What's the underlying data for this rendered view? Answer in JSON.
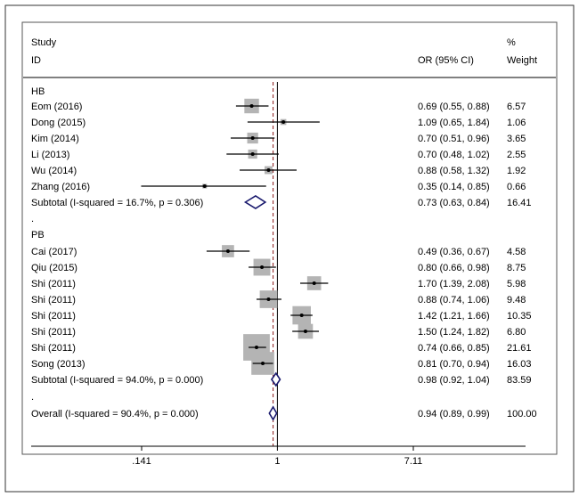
{
  "chart_data": {
    "type": "forest",
    "header": {
      "study_col_line1": "Study",
      "study_col_line2": "ID",
      "or_col": "OR (95% CI)",
      "weight_col_line1": "%",
      "weight_col_line2": "Weight"
    },
    "groups": [
      {
        "label": "HB",
        "studies": [
          {
            "study": "Eom (2016)",
            "or": 0.69,
            "lo": 0.55,
            "hi": 0.88,
            "ci_text": "0.69 (0.55, 0.88)",
            "weight": "6.57"
          },
          {
            "study": "Dong (2015)",
            "or": 1.09,
            "lo": 0.65,
            "hi": 1.84,
            "ci_text": "1.09 (0.65, 1.84)",
            "weight": "1.06"
          },
          {
            "study": "Kim (2014)",
            "or": 0.7,
            "lo": 0.51,
            "hi": 0.96,
            "ci_text": "0.70 (0.51, 0.96)",
            "weight": "3.65"
          },
          {
            "study": "Li (2013)",
            "or": 0.7,
            "lo": 0.48,
            "hi": 1.02,
            "ci_text": "0.70 (0.48, 1.02)",
            "weight": "2.55"
          },
          {
            "study": "Wu (2014)",
            "or": 0.88,
            "lo": 0.58,
            "hi": 1.32,
            "ci_text": "0.88 (0.58, 1.32)",
            "weight": "1.92"
          },
          {
            "study": "Zhang (2016)",
            "or": 0.35,
            "lo": 0.14,
            "hi": 0.85,
            "ci_text": "0.35 (0.14, 0.85)",
            "weight": "0.66"
          }
        ],
        "subtotal": {
          "label": "Subtotal  (I-squared = 16.7%, p = 0.306)",
          "or": 0.73,
          "lo": 0.63,
          "hi": 0.84,
          "ci_text": "0.73 (0.63, 0.84)",
          "weight": "16.41"
        }
      },
      {
        "label": "PB",
        "studies": [
          {
            "study": "Cai (2017)",
            "or": 0.49,
            "lo": 0.36,
            "hi": 0.67,
            "ci_text": "0.49 (0.36, 0.67)",
            "weight": "4.58"
          },
          {
            "study": "Qiu (2015)",
            "or": 0.8,
            "lo": 0.66,
            "hi": 0.98,
            "ci_text": "0.80 (0.66, 0.98)",
            "weight": "8.75"
          },
          {
            "study": "Shi (2011)",
            "or": 1.7,
            "lo": 1.39,
            "hi": 2.08,
            "ci_text": "1.70 (1.39, 2.08)",
            "weight": "5.98"
          },
          {
            "study": "Shi (2011)",
            "or": 0.88,
            "lo": 0.74,
            "hi": 1.06,
            "ci_text": "0.88 (0.74, 1.06)",
            "weight": "9.48"
          },
          {
            "study": "Shi (2011)",
            "or": 1.42,
            "lo": 1.21,
            "hi": 1.66,
            "ci_text": "1.42 (1.21, 1.66)",
            "weight": "10.35"
          },
          {
            "study": "Shi (2011)",
            "or": 1.5,
            "lo": 1.24,
            "hi": 1.82,
            "ci_text": "1.50 (1.24, 1.82)",
            "weight": "6.80"
          },
          {
            "study": "Shi (2011)",
            "or": 0.74,
            "lo": 0.66,
            "hi": 0.85,
            "ci_text": "0.74 (0.66, 0.85)",
            "weight": "21.61"
          },
          {
            "study": "Song (2013)",
            "or": 0.81,
            "lo": 0.7,
            "hi": 0.94,
            "ci_text": "0.81 (0.70, 0.94)",
            "weight": "16.03"
          }
        ],
        "subtotal": {
          "label": "Subtotal  (I-squared = 94.0%, p = 0.000)",
          "or": 0.98,
          "lo": 0.92,
          "hi": 1.04,
          "ci_text": "0.98 (0.92, 1.04)",
          "weight": "83.59"
        }
      }
    ],
    "overall": {
      "label": "Overall  (I-squared = 90.4%, p = 0.000)",
      "or": 0.94,
      "lo": 0.89,
      "hi": 0.99,
      "ci_text": "0.94 (0.89, 0.99)",
      "weight": "100.00"
    },
    "separator_text": ".",
    "x_axis": {
      "scale": "log",
      "range": [
        0.141,
        7.11
      ],
      "ticks": [
        {
          "value": 0.141,
          "label": ".141"
        },
        {
          "value": 1,
          "label": "1"
        },
        {
          "value": 7.11,
          "label": "7.11"
        }
      ]
    },
    "null_line": 1,
    "colors": {
      "box": "#b4b4b4",
      "ci_line": "#000000",
      "diamond": "#1a1a6e",
      "overall_line": "#8b1a1a",
      "frame": "#333333"
    }
  }
}
